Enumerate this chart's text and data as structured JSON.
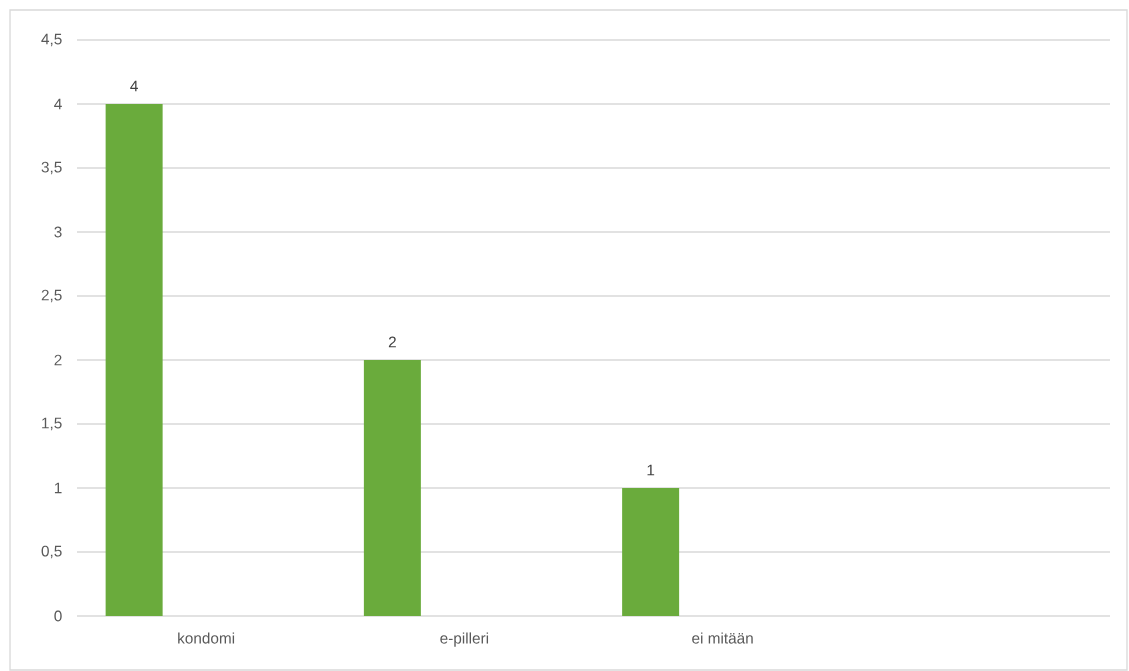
{
  "chart_data": {
    "type": "bar",
    "categories": [
      "kondomi",
      "e-pilleri",
      "ei mitään",
      null
    ],
    "values": [
      4,
      2,
      1,
      null
    ],
    "color": "#6aab3c",
    "ylim": [
      0,
      4.5
    ],
    "yticks": [
      {
        "value": 0,
        "label": "0"
      },
      {
        "value": 0.5,
        "label": "0,5"
      },
      {
        "value": 1,
        "label": "1"
      },
      {
        "value": 1.5,
        "label": "1,5"
      },
      {
        "value": 2,
        "label": "2"
      },
      {
        "value": 2.5,
        "label": "2,5"
      },
      {
        "value": 3,
        "label": "3"
      },
      {
        "value": 3.5,
        "label": "3,5"
      },
      {
        "value": 4,
        "label": "4"
      },
      {
        "value": 4.5,
        "label": "4,5"
      }
    ],
    "grid": "y",
    "data_labels": true
  }
}
